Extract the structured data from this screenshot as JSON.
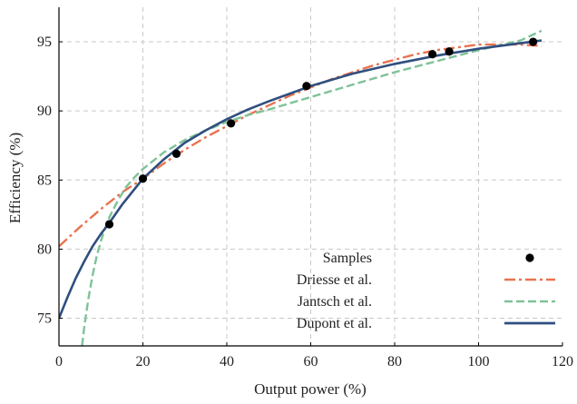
{
  "chart_data": {
    "type": "line",
    "xlabel": "Output power (%)",
    "ylabel": "Efficiency (%)",
    "xlim": [
      0,
      120
    ],
    "ylim": [
      73,
      97.5
    ],
    "xticks": [
      0,
      20,
      40,
      60,
      80,
      100,
      120
    ],
    "yticks": [
      75,
      80,
      85,
      90,
      95
    ],
    "grid": true,
    "legend_position": "bottom-right",
    "samples": {
      "name": "Samples",
      "color": "#000000",
      "points": [
        {
          "x": 12,
          "y": 81.8
        },
        {
          "x": 20,
          "y": 85.1
        },
        {
          "x": 28,
          "y": 86.9
        },
        {
          "x": 41,
          "y": 89.1
        },
        {
          "x": 59,
          "y": 91.8
        },
        {
          "x": 89,
          "y": 94.1
        },
        {
          "x": 93,
          "y": 94.3
        },
        {
          "x": 113,
          "y": 95.0
        }
      ]
    },
    "series": [
      {
        "name": "Driesse et al.",
        "color": "#e8734f",
        "style": "dash-dot",
        "x": [
          0,
          5,
          10,
          15,
          20,
          25,
          30,
          35,
          40,
          45,
          50,
          55,
          60,
          65,
          70,
          75,
          80,
          85,
          90,
          95,
          100,
          105,
          110,
          115
        ],
        "y": [
          80.2,
          81.6,
          82.9,
          84.1,
          85.1,
          86.2,
          87.2,
          88.1,
          88.9,
          89.7,
          90.4,
          91.1,
          91.7,
          92.3,
          92.8,
          93.3,
          93.7,
          94.1,
          94.4,
          94.6,
          94.8,
          94.8,
          94.8,
          94.7
        ]
      },
      {
        "name": "Jantsch et al.",
        "color": "#7fc298",
        "style": "dashed",
        "x": [
          5.5,
          6,
          7,
          8,
          9,
          10,
          11,
          12,
          14,
          16,
          18,
          20,
          25,
          30,
          35,
          40,
          45,
          50,
          60,
          70,
          80,
          90,
          100,
          110,
          115
        ],
        "y": [
          73.0,
          74.3,
          76.4,
          78.1,
          79.5,
          80.6,
          81.5,
          82.3,
          83.5,
          84.5,
          85.2,
          85.8,
          87.0,
          87.9,
          88.6,
          89.2,
          89.7,
          90.1,
          91.0,
          91.9,
          92.8,
          93.6,
          94.4,
          95.1,
          95.8
        ]
      },
      {
        "name": "Dupont et al.",
        "color": "#2f4f7f",
        "style": "solid",
        "x": [
          0,
          2,
          4,
          6,
          8,
          10,
          12,
          15,
          20,
          25,
          30,
          35,
          40,
          45,
          50,
          60,
          70,
          80,
          90,
          100,
          110,
          115
        ],
        "y": [
          75.0,
          76.5,
          77.9,
          79.1,
          80.2,
          81.1,
          81.9,
          83.2,
          85.1,
          86.5,
          87.7,
          88.6,
          89.4,
          90.1,
          90.7,
          91.8,
          92.7,
          93.4,
          94.0,
          94.5,
          94.9,
          95.1
        ]
      }
    ]
  }
}
